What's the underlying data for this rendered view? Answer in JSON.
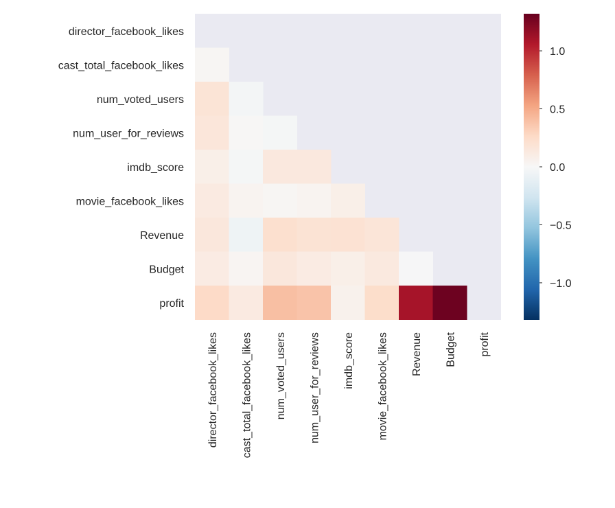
{
  "chart_data": {
    "type": "heatmap",
    "title": "",
    "xlabel": "",
    "ylabel": "",
    "variables": [
      "director_facebook_likes",
      "cast_total_facebook_likes",
      "num_voted_users",
      "num_user_for_reviews",
      "imdb_score",
      "movie_facebook_likes",
      "Revenue",
      "Budget",
      "profit"
    ],
    "mask": "upper-triangle-including-diagonal",
    "matrix": [
      [
        null,
        null,
        null,
        null,
        null,
        null,
        null,
        null,
        null
      ],
      [
        0.02,
        null,
        null,
        null,
        null,
        null,
        null,
        null,
        null
      ],
      [
        0.18,
        -0.03,
        null,
        null,
        null,
        null,
        null,
        null,
        null
      ],
      [
        0.16,
        0.01,
        -0.02,
        null,
        null,
        null,
        null,
        null,
        null
      ],
      [
        0.08,
        -0.02,
        0.14,
        0.14,
        null,
        null,
        null,
        null,
        null
      ],
      [
        0.12,
        0.04,
        0.02,
        0.04,
        0.08,
        null,
        null,
        null,
        null
      ],
      [
        0.15,
        -0.06,
        0.22,
        0.19,
        0.2,
        0.17,
        null,
        null,
        null
      ],
      [
        0.11,
        0.03,
        0.15,
        0.11,
        0.08,
        0.13,
        -0.01,
        null,
        null
      ],
      [
        0.26,
        0.12,
        0.4,
        0.38,
        0.06,
        0.24,
        1.1,
        1.3,
        null
      ]
    ],
    "colorbar": {
      "min": -1.32,
      "max": 1.32,
      "ticks": [
        1.0,
        0.5,
        0.0,
        -0.5,
        -1.0
      ],
      "tick_labels": [
        "1.0",
        "0.5",
        "0.0",
        "−0.5",
        "−1.0"
      ],
      "colormap": "RdBu_r"
    },
    "grid": false,
    "colors": {
      "background": "#eaeaf2",
      "text": "#262626"
    }
  }
}
